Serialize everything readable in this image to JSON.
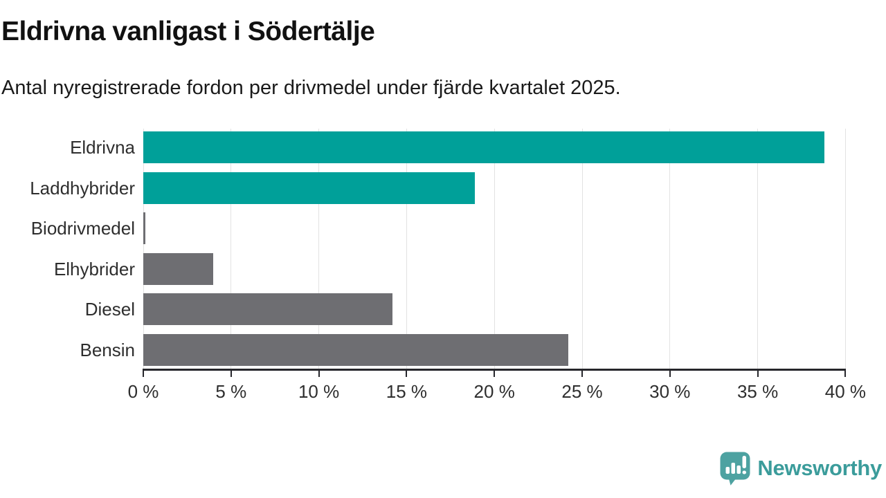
{
  "header": {
    "title": "Eldrivna vanligast i Södertälje",
    "subtitle": "Antal nyregistrerade fordon per drivmedel under fjärde kvartalet 2025."
  },
  "chart_data": {
    "type": "bar",
    "orientation": "horizontal",
    "title": "Eldrivna vanligast i Södertälje",
    "subtitle": "Antal nyregistrerade fordon per drivmedel under fjärde kvartalet 2025.",
    "categories": [
      "Eldrivna",
      "Laddhybrider",
      "Biodrivmedel",
      "Elhybrider",
      "Diesel",
      "Bensin"
    ],
    "values": [
      38.8,
      18.9,
      0.1,
      4.0,
      14.2,
      24.2
    ],
    "unit": "%",
    "xlim": [
      0,
      40
    ],
    "x_tick_values": [
      0,
      5,
      10,
      15,
      20,
      25,
      30,
      35,
      40
    ],
    "x_tick_labels": [
      "0 %",
      "5 %",
      "10 %",
      "15 %",
      "20 %",
      "25 %",
      "30 %",
      "35 %",
      "40 %"
    ],
    "grid": true,
    "legend": "none",
    "colors": {
      "highlight": "#00a099",
      "default": "#6e6e72",
      "gridline": "#e2e2e2",
      "axis": "#26262b",
      "label": "#2e2e2e"
    },
    "bar_colors": [
      "#00a099",
      "#00a099",
      "#6e6e72",
      "#6e6e72",
      "#6e6e72",
      "#6e6e72"
    ]
  },
  "footer": {
    "brand": "Newsworthy",
    "brand_color": "#3b9c9b",
    "logo_icon": "newsworthy-speech-bubble-bar-chart-icon",
    "logo_icon_color": "#4da2a1"
  }
}
